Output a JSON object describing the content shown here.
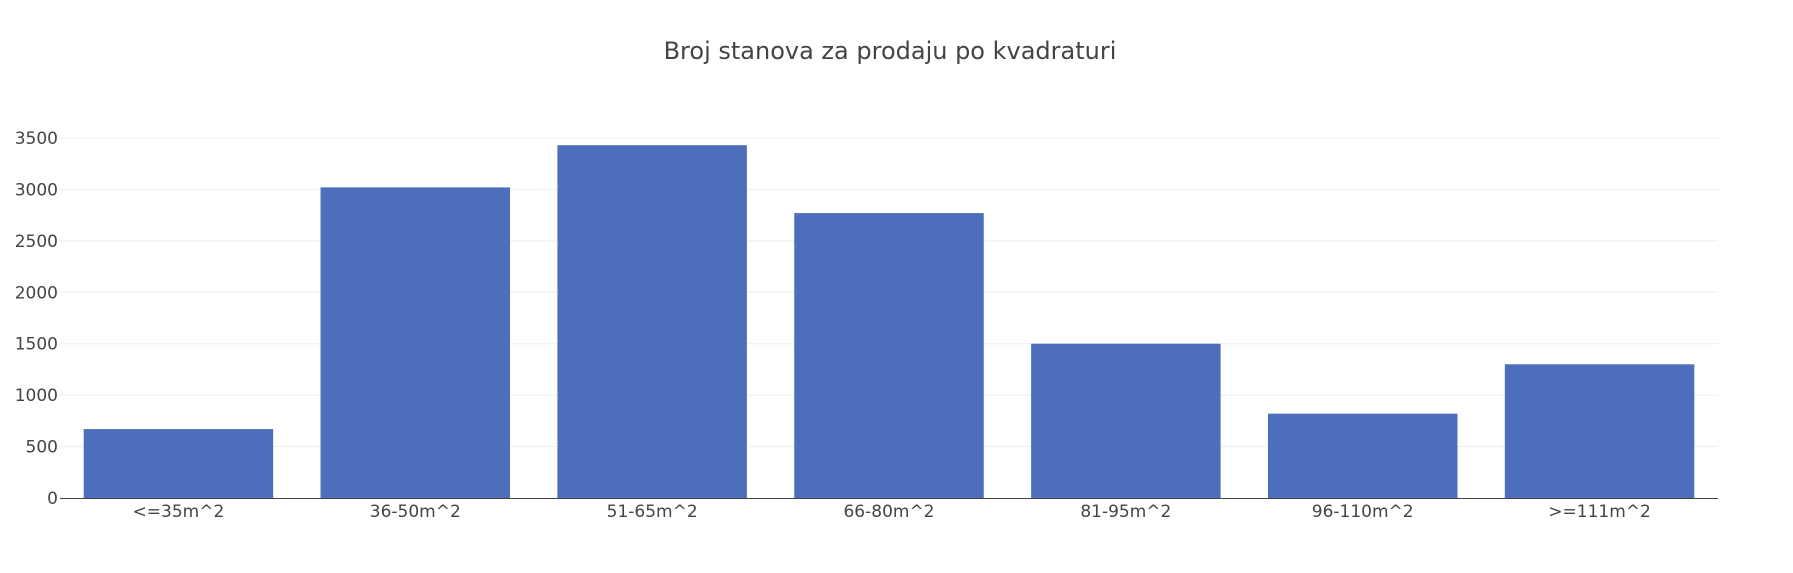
{
  "chart_data": {
    "type": "bar",
    "title": "Broj stanova za prodaju po kvadraturi",
    "xlabel": "",
    "ylabel": "",
    "categories": [
      "<=35m^2",
      "36-50m^2",
      "51-65m^2",
      "66-80m^2",
      "81-95m^2",
      "96-110m^2",
      ">=111m^2"
    ],
    "values": [
      670,
      3020,
      3430,
      2770,
      1500,
      820,
      1300
    ],
    "ylim": [
      0,
      3500
    ],
    "yticks": [
      0,
      500,
      1000,
      1500,
      2000,
      2500,
      3000,
      3500
    ],
    "grid": true,
    "bar_color": "#4c6ebb"
  }
}
